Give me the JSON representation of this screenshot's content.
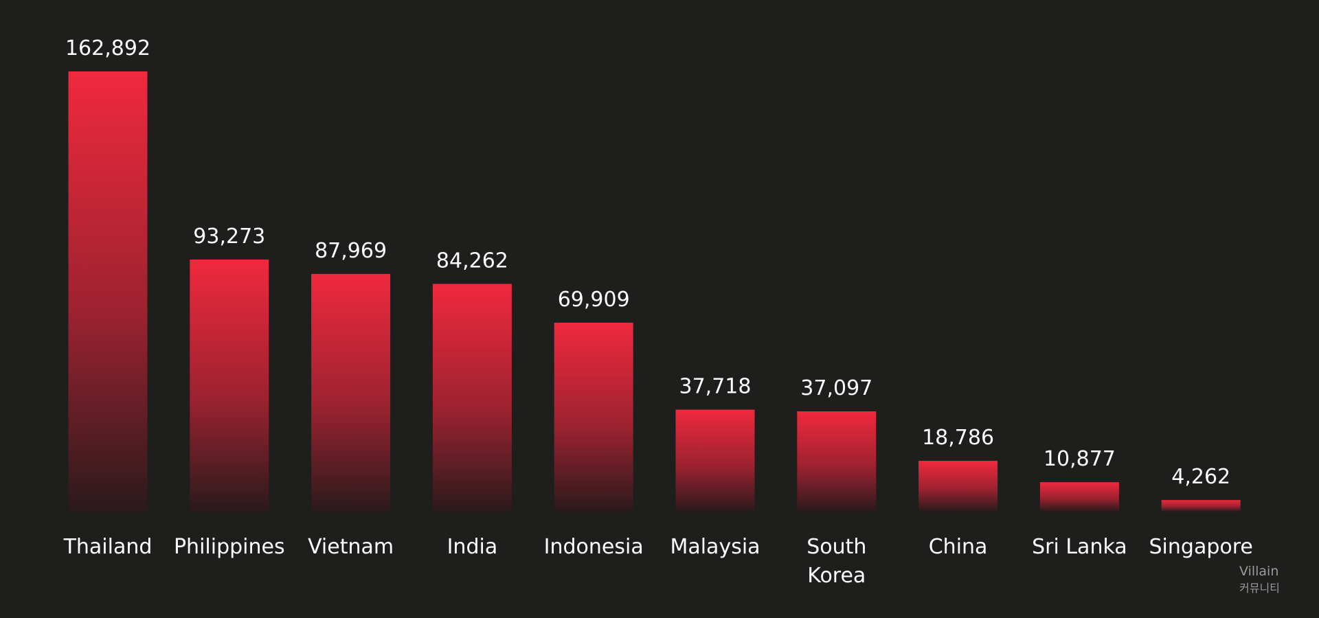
{
  "chart_data": {
    "type": "bar",
    "categories": [
      "Thailand",
      "Philippines",
      "Vietnam",
      "India",
      "Indonesia",
      "Malaysia",
      "South Korea",
      "China",
      "Sri Lanka",
      "Singapore"
    ],
    "values": [
      162892,
      93273,
      87969,
      84262,
      69909,
      37718,
      37097,
      18786,
      10877,
      4262
    ],
    "value_labels": [
      "162,892",
      "93,273",
      "87,969",
      "84,262",
      "69,909",
      "37,718",
      "37,097",
      "18,786",
      "10,877",
      "4,262"
    ],
    "color": "#f0293e"
  },
  "watermark": {
    "name": "Villain",
    "sub": "커뮤니티"
  }
}
